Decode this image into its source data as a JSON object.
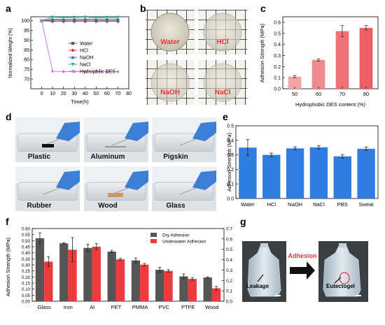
{
  "panel_letters": [
    "a",
    "b",
    "c",
    "d",
    "e",
    "f",
    "g"
  ],
  "panel_b": {
    "photos": [
      {
        "label": "Water",
        "label_color": "#e8343b",
        "tint": "#d8d2c1"
      },
      {
        "label": "HCl",
        "label_color": "#e8343b",
        "tint": "#d9d6cc"
      },
      {
        "label": "NaOH",
        "label_color": "#e8343b",
        "tint": "#d6d3ca"
      },
      {
        "label": "NaCl",
        "label_color": "#e8343b",
        "tint": "#d3d0c9"
      }
    ]
  },
  "panel_d": {
    "photos": [
      {
        "label": "Plastic"
      },
      {
        "label": "Aluminum"
      },
      {
        "label": "Pigskin"
      },
      {
        "label": "Rubber"
      },
      {
        "label": "Wood"
      },
      {
        "label": "Glass"
      }
    ]
  },
  "panel_g": {
    "left_callout": "Leakage",
    "right_callout": "Eutectogel",
    "arrow_label": "Adhesion",
    "arrow_label_color": "#e8343b"
  },
  "chart_data": [
    {
      "panel": "a",
      "type": "line",
      "xlabel": "Time(h)",
      "ylabel": "Normalized Weight (%)",
      "x": [
        0,
        10,
        20,
        30,
        40,
        50,
        60,
        70
      ],
      "xlim": [
        -10,
        80
      ],
      "ylim": [
        65,
        102
      ],
      "xticks": [
        0,
        10,
        20,
        30,
        40,
        50,
        60,
        70,
        80
      ],
      "yticks": [
        70,
        75,
        80,
        85,
        90,
        95,
        100
      ],
      "legend_position": "right",
      "series": [
        {
          "name": "Water",
          "color": "#595959",
          "marker": "square",
          "values": [
            100,
            100.2,
            100.1,
            100.1,
            100.2,
            100.1,
            100.1,
            100.1
          ]
        },
        {
          "name": "HCl",
          "color": "#e8343b",
          "marker": "circle",
          "values": [
            100,
            99.6,
            99.6,
            99.6,
            99.6,
            99.6,
            99.6,
            99.6
          ]
        },
        {
          "name": "NaOH",
          "color": "#2f6fd6",
          "marker": "triangle",
          "values": [
            100,
            100.8,
            100.7,
            100.8,
            100.8,
            100.7,
            100.8,
            100.8
          ]
        },
        {
          "name": "NaCl",
          "color": "#2bb673",
          "marker": "triangle-down",
          "values": [
            100,
            101.8,
            101.6,
            101.7,
            101.8,
            101.6,
            101.7,
            101.7
          ]
        },
        {
          "name": "Hydrophilic DES",
          "color": "#c47be0",
          "marker": "diamond",
          "values": [
            100,
            74,
            73.8,
            73.8,
            73.8,
            73.8,
            73.8,
            73.8
          ]
        }
      ]
    },
    {
      "panel": "c",
      "type": "bar",
      "xlabel": "Hydrophobic DES content (%)",
      "ylabel": "Adhesion Strength (MPa)",
      "categories": [
        "50",
        "60",
        "70",
        "80"
      ],
      "values": [
        0.11,
        0.26,
        0.52,
        0.55
      ],
      "errors": [
        0.01,
        0.01,
        0.05,
        0.02
      ],
      "ylim": [
        0,
        0.65
      ],
      "yticks": [
        0,
        0.1,
        0.2,
        0.3,
        0.4,
        0.5,
        0.6
      ],
      "colors": [
        "#f4a3a6",
        "#f28b8f",
        "#ef7276",
        "#ed5f64"
      ]
    },
    {
      "panel": "e",
      "type": "bar",
      "ylabel": "Adhesion Strength (MPa)",
      "categories": [
        "Water",
        "HCl",
        "NaOH",
        "NaCl",
        "PBS",
        "Sweat"
      ],
      "values": [
        0.35,
        0.3,
        0.345,
        0.352,
        0.29,
        0.342
      ],
      "errors": [
        0.055,
        0.012,
        0.01,
        0.012,
        0.012,
        0.012
      ],
      "ylim": [
        0,
        0.5
      ],
      "yticks": [
        0,
        0.1,
        0.2,
        0.3,
        0.4,
        0.5
      ],
      "color": "#2f7de0"
    },
    {
      "panel": "f",
      "type": "bar",
      "ylabel": "Adhesion Strength (MPa)",
      "categories": [
        "Glass",
        "Iron",
        "Al",
        "PET",
        "PMMA",
        "PVC",
        "PTFE",
        "Wood"
      ],
      "ylim": [
        0,
        0.6
      ],
      "yticks": [
        0,
        0.05,
        0.1,
        0.15,
        0.2,
        0.25,
        0.3,
        0.35,
        0.4,
        0.45,
        0.5,
        0.55,
        0.6
      ],
      "right_ylim": [
        0,
        0.7
      ],
      "right_yticks": [
        0,
        0.1,
        0.2,
        0.3,
        0.4,
        0.5,
        0.6,
        0.7
      ],
      "legend_position": "top-right",
      "series": [
        {
          "name": "Dry Adhesion",
          "color": "#555555",
          "values": [
            0.52,
            0.478,
            0.44,
            0.41,
            0.337,
            0.26,
            0.205,
            0.196
          ],
          "errors": [
            0.045,
            0.005,
            0.03,
            0.01,
            0.02,
            0.02,
            0.02,
            0.005
          ]
        },
        {
          "name": "Underwater Adhesion",
          "color": "#ef3a3d",
          "values": [
            0.327,
            0.425,
            0.45,
            0.346,
            0.302,
            0.25,
            0.184,
            0.107
          ],
          "errors": [
            0.04,
            0.1,
            0.025,
            0.01,
            0.01,
            0.01,
            0.01,
            0.015
          ]
        }
      ]
    }
  ]
}
